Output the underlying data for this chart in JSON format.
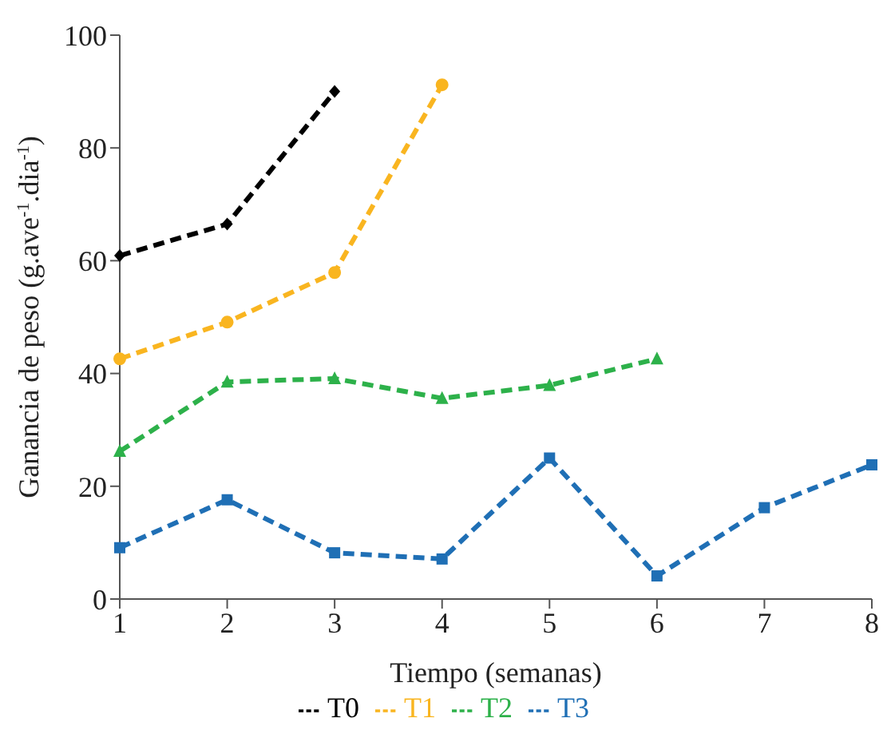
{
  "chart_data": {
    "type": "line",
    "xlabel": "Tiempo (semanas)",
    "ylabel": "Ganancia de peso (g.ave$^{-1}$.dia$^{-1}$)",
    "categories": [
      "1",
      "2",
      "3",
      "4",
      "5",
      "6",
      "7",
      "8"
    ],
    "series": [
      {
        "name": "T0",
        "color": "#000000",
        "marker": "diamond",
        "values": [
          60.9,
          66.5,
          90,
          null,
          null,
          null,
          null,
          null
        ]
      },
      {
        "name": "T1",
        "color": "#f9b520",
        "marker": "circle",
        "values": [
          42.6,
          49.1,
          57.9,
          91.2,
          null,
          null,
          null,
          null
        ]
      },
      {
        "name": "T2",
        "color": "#2db14a",
        "marker": "triangle",
        "values": [
          26.2,
          38.5,
          39.1,
          35.6,
          37.9,
          42.6,
          null,
          null
        ]
      },
      {
        "name": "T3",
        "color": "#1f6fb5",
        "marker": "square",
        "values": [
          9.1,
          17.6,
          8.2,
          7.1,
          25,
          4.1,
          16.2,
          23.8
        ]
      }
    ],
    "ylim": [
      0,
      100
    ],
    "yticks": [
      0,
      20,
      40,
      60,
      80,
      100
    ],
    "grid": false,
    "legend": "bottom",
    "line_style": "dashed"
  }
}
